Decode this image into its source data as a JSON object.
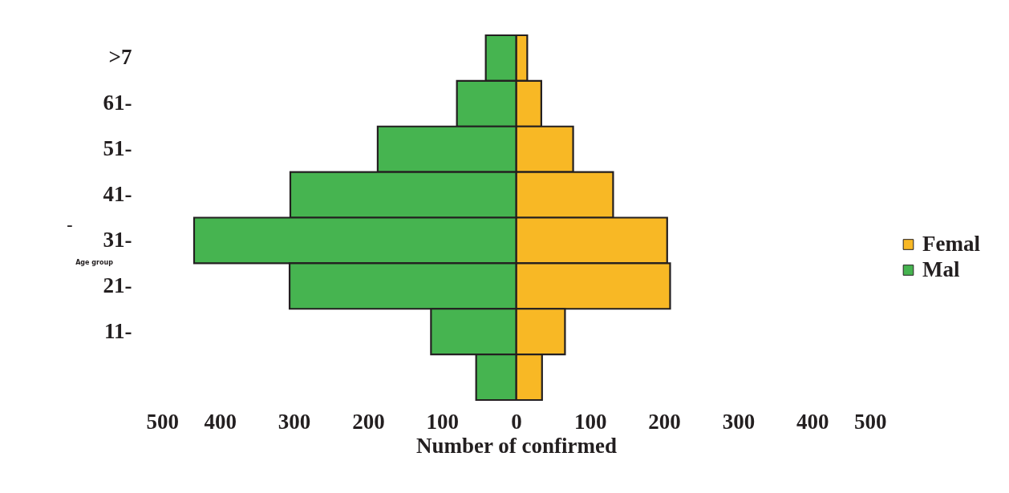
{
  "chart_data": {
    "type": "bar",
    "orientation": "horizontal",
    "stacked": true,
    "categories": [
      ">7",
      "61-",
      "51-",
      "41-",
      "31-",
      "21-",
      "11-",
      null
    ],
    "series": [
      {
        "name": "Femal",
        "color": "#f8b825",
        "values": [
          15,
          34,
          77,
          131,
          204,
          208,
          66,
          35
        ]
      },
      {
        "name": "Mal",
        "color": "#46b450",
        "values": [
          -41,
          -80,
          -187,
          -305,
          -435,
          -306,
          -115,
          -54
        ]
      }
    ],
    "xlim": [
      -500,
      500
    ],
    "xticks": [
      {
        "value": -500,
        "label": "500"
      },
      {
        "value": -400,
        "label": "400"
      },
      {
        "value": -300,
        "label": "300"
      },
      {
        "value": -200,
        "label": "200"
      },
      {
        "value": -100,
        "label": "100"
      },
      0,
      100,
      200,
      300,
      400,
      500
    ],
    "xlabel": "Number of confirmed",
    "ylabel": "Age group",
    "annotations": [
      "-"
    ],
    "legend": "right",
    "grid": false
  }
}
